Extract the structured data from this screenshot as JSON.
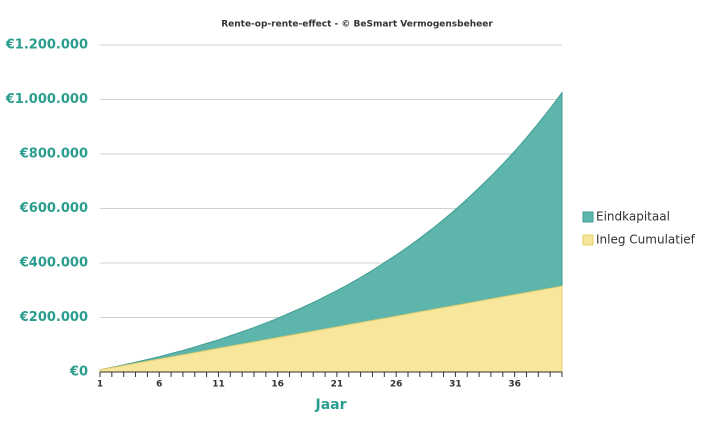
{
  "chart_data": {
    "type": "area",
    "title": "Rente-op-rente-effect -  © BeSmart Vermogensbeheer",
    "x_label": "Jaar",
    "categories": [
      "1",
      null,
      null,
      null,
      null,
      "6",
      null,
      null,
      null,
      null,
      "11",
      null,
      null,
      null,
      null,
      "16",
      null,
      null,
      null,
      null,
      "21",
      null,
      null,
      null,
      null,
      "26",
      null,
      null,
      null,
      null,
      "31",
      null,
      null,
      null,
      null,
      "36",
      null,
      null,
      null,
      null
    ],
    "series": [
      {
        "name": "Eindkapitaal",
        "color": "#5db5ab",
        "values": [
          8000,
          17000,
          26000,
          36000,
          46000,
          56000,
          68000,
          79000,
          92000,
          105000,
          118000,
          133000,
          148000,
          163000,
          180000,
          197000,
          216000,
          235000,
          255000,
          277000,
          299000,
          322000,
          347000,
          373000,
          401000,
          429000,
          459000,
          491000,
          524000,
          559000,
          596000,
          635000,
          676000,
          718000,
          763000,
          810000,
          860000,
          912000,
          967000,
          1025000
        ]
      },
      {
        "name": "Inleg Cumulatief",
        "color": "#f8e69d",
        "values": [
          7875,
          15750,
          23625,
          31500,
          39375,
          47250,
          55125,
          63000,
          70875,
          78750,
          86625,
          94500,
          102375,
          110250,
          118125,
          126000,
          133875,
          141750,
          149625,
          157500,
          165375,
          173250,
          181125,
          189000,
          196875,
          204750,
          212625,
          220500,
          228375,
          236250,
          244125,
          252000,
          259875,
          267750,
          275625,
          283500,
          291375,
          299250,
          307125,
          315000
        ]
      }
    ],
    "ylim": [
      0,
      1200000
    ],
    "yticks": [
      {
        "value": 0,
        "label": "€0"
      },
      {
        "value": 200000,
        "label": "€200.000"
      },
      {
        "value": 400000,
        "label": "€400.000"
      },
      {
        "value": 600000,
        "label": "€600.000"
      },
      {
        "value": 800000,
        "label": "€800.000"
      },
      {
        "value": 1000000,
        "label": "€1.000.000"
      },
      {
        "value": 1200000,
        "label": "€1.200.000"
      }
    ],
    "grid": true,
    "legend": "right"
  }
}
